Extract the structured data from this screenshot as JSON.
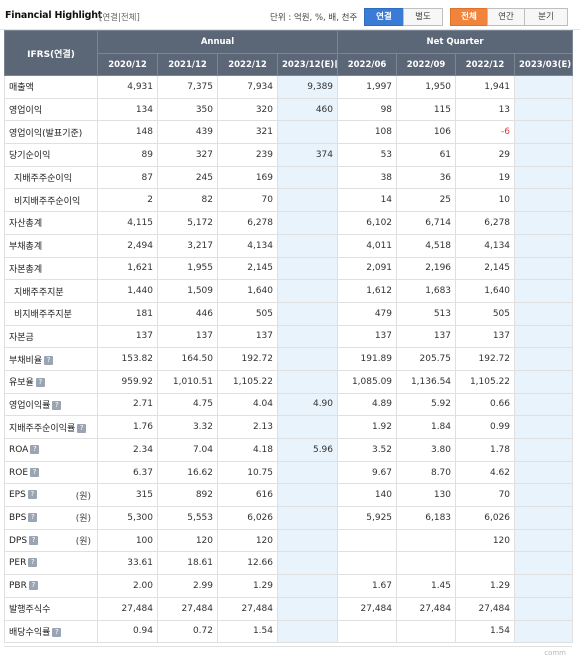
{
  "header": {
    "title": "Financial Highlight",
    "subtitle": "[연결|전체]",
    "unit_label": "단위 : 억원, %, 배, 천주",
    "scope_buttons": [
      "연결",
      "별도"
    ],
    "period_buttons": [
      "전체",
      "연간",
      "분기"
    ]
  },
  "table": {
    "corner_label": "IFRS(연결)",
    "group_annual": "Annual",
    "group_quarter": "Net Quarter",
    "columns": [
      "2020/12",
      "2021/12",
      "2022/12",
      "2023/12(E)",
      "2022/06",
      "2022/09",
      "2022/12",
      "2023/03(E)"
    ],
    "estimate_icon": "?",
    "rows": [
      {
        "label": "매출액",
        "unit": "",
        "values": [
          "4,931",
          "7,375",
          "7,934",
          "9,389",
          "1,997",
          "1,950",
          "1,941",
          ""
        ]
      },
      {
        "label": "영업이익",
        "unit": "",
        "values": [
          "134",
          "350",
          "320",
          "460",
          "98",
          "115",
          "13",
          ""
        ]
      },
      {
        "label": "영업이익(발표기준)",
        "unit": "",
        "values": [
          "148",
          "439",
          "321",
          "",
          "108",
          "106",
          "-6",
          ""
        ]
      },
      {
        "label": "당기순이익",
        "unit": "",
        "values": [
          "89",
          "327",
          "239",
          "374",
          "53",
          "61",
          "29",
          ""
        ]
      },
      {
        "label": "지배주주순이익",
        "unit": "",
        "values": [
          "87",
          "245",
          "169",
          "",
          "38",
          "36",
          "19",
          ""
        ]
      },
      {
        "label": "비지배주주순이익",
        "unit": "",
        "values": [
          "2",
          "82",
          "70",
          "",
          "14",
          "25",
          "10",
          ""
        ]
      },
      {
        "label": "자산총계",
        "unit": "",
        "values": [
          "4,115",
          "5,172",
          "6,278",
          "",
          "6,102",
          "6,714",
          "6,278",
          ""
        ]
      },
      {
        "label": "부채총계",
        "unit": "",
        "values": [
          "2,494",
          "3,217",
          "4,134",
          "",
          "4,011",
          "4,518",
          "4,134",
          ""
        ]
      },
      {
        "label": "자본총계",
        "unit": "",
        "values": [
          "1,621",
          "1,955",
          "2,145",
          "",
          "2,091",
          "2,196",
          "2,145",
          ""
        ]
      },
      {
        "label": "지배주주지분",
        "unit": "",
        "values": [
          "1,440",
          "1,509",
          "1,640",
          "",
          "1,612",
          "1,683",
          "1,640",
          ""
        ]
      },
      {
        "label": "비지배주주지분",
        "unit": "",
        "values": [
          "181",
          "446",
          "505",
          "",
          "479",
          "513",
          "505",
          ""
        ]
      },
      {
        "label": "자본금",
        "unit": "",
        "values": [
          "137",
          "137",
          "137",
          "",
          "137",
          "137",
          "137",
          ""
        ]
      },
      {
        "label": "부채비율",
        "unit": "",
        "values": [
          "153.82",
          "164.50",
          "192.72",
          "",
          "191.89",
          "205.75",
          "192.72",
          ""
        ]
      },
      {
        "label": "유보율",
        "unit": "",
        "values": [
          "959.92",
          "1,010.51",
          "1,105.22",
          "",
          "1,085.09",
          "1,136.54",
          "1,105.22",
          ""
        ]
      },
      {
        "label": "영업이익률",
        "unit": "",
        "values": [
          "2.71",
          "4.75",
          "4.04",
          "4.90",
          "4.89",
          "5.92",
          "0.66",
          ""
        ]
      },
      {
        "label": "지배주주순이익률",
        "unit": "",
        "values": [
          "1.76",
          "3.32",
          "2.13",
          "",
          "1.92",
          "1.84",
          "0.99",
          ""
        ]
      },
      {
        "label": "ROA",
        "unit": "",
        "values": [
          "2.34",
          "7.04",
          "4.18",
          "5.96",
          "3.52",
          "3.80",
          "1.78",
          ""
        ]
      },
      {
        "label": "ROE",
        "unit": "",
        "values": [
          "6.37",
          "16.62",
          "10.75",
          "",
          "9.67",
          "8.70",
          "4.62",
          ""
        ]
      },
      {
        "label": "EPS",
        "unit": "(원)",
        "values": [
          "315",
          "892",
          "616",
          "",
          "140",
          "130",
          "70",
          ""
        ]
      },
      {
        "label": "BPS",
        "unit": "(원)",
        "values": [
          "5,300",
          "5,553",
          "6,026",
          "",
          "5,925",
          "6,183",
          "6,026",
          ""
        ]
      },
      {
        "label": "DPS",
        "unit": "(원)",
        "values": [
          "100",
          "120",
          "120",
          "",
          "",
          "",
          "120",
          ""
        ]
      },
      {
        "label": "PER",
        "unit": "",
        "values": [
          "33.61",
          "18.61",
          "12.66",
          "",
          "",
          "",
          "",
          ""
        ]
      },
      {
        "label": "PBR",
        "unit": "",
        "values": [
          "2.00",
          "2.99",
          "1.29",
          "",
          "1.67",
          "1.45",
          "1.29",
          ""
        ]
      },
      {
        "label": "발행주식수",
        "unit": "",
        "values": [
          "27,484",
          "27,484",
          "27,484",
          "",
          "27,484",
          "27,484",
          "27,484",
          ""
        ]
      },
      {
        "label": "배당수익률",
        "unit": "",
        "values": [
          "0.94",
          "0.72",
          "1.54",
          "",
          "",
          "",
          "1.54",
          ""
        ]
      }
    ]
  },
  "footer": {
    "watermark": "comm"
  },
  "colors": {
    "header_bg": "#5b6677",
    "estimate_bg": "#e9f3fb",
    "active_blue": "#3a7bd5",
    "active_orange": "#f0843c",
    "negative": "#e03a3a"
  }
}
